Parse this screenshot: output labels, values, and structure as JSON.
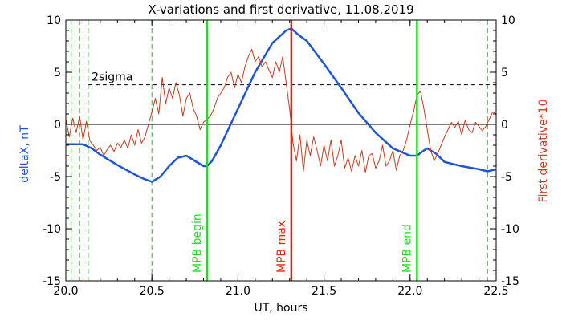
{
  "chart_data": {
    "type": "line",
    "title": "X-variations and first derivative, 11.08.2019",
    "xlabel": "UT, hours",
    "ylabel_left": "deltaX, nT",
    "ylabel_right": "First derivative*10",
    "xlim": [
      20.0,
      22.5
    ],
    "ylim": [
      -15,
      10
    ],
    "x_ticks": [
      "20.0",
      "20.5",
      "21.0",
      "21.5",
      "22.0",
      "22.5"
    ],
    "y_ticks": [
      "10",
      "5",
      "0",
      "-5",
      "-10",
      "-15"
    ],
    "colors": {
      "deltaX": "#1f55d6",
      "derivative": "#c83a1e",
      "mpb_marker": "#22dd22",
      "mpb_max": "#ee2200",
      "guides": "#22bb22",
      "threshold": "#000000"
    },
    "threshold": {
      "label": "2sigma",
      "value": 3.8
    },
    "zero_line": 0,
    "markers": [
      {
        "label": "MPB begin",
        "x": 20.82,
        "kind": "begin"
      },
      {
        "label": "MPB max",
        "x": 21.31,
        "kind": "max"
      },
      {
        "label": "MPB end",
        "x": 22.04,
        "kind": "end"
      }
    ],
    "dashed_guides_x": [
      20.03,
      20.08,
      20.13,
      20.5,
      22.45
    ],
    "series": [
      {
        "name": "deltaX",
        "axis": "left",
        "x": [
          20.0,
          20.1,
          20.15,
          20.2,
          20.3,
          20.4,
          20.45,
          20.5,
          20.55,
          20.6,
          20.65,
          20.7,
          20.75,
          20.8,
          20.82,
          20.85,
          20.9,
          21.0,
          21.1,
          21.2,
          21.28,
          21.31,
          21.35,
          21.4,
          21.5,
          21.6,
          21.7,
          21.8,
          21.9,
          22.0,
          22.04,
          22.08,
          22.1,
          22.15,
          22.2,
          22.3,
          22.4,
          22.45,
          22.5
        ],
        "y": [
          -1.9,
          -1.9,
          -2.3,
          -2.9,
          -3.9,
          -4.8,
          -5.2,
          -5.5,
          -5.0,
          -4.0,
          -3.2,
          -3.0,
          -3.5,
          -4.0,
          -4.0,
          -3.5,
          -2.0,
          1.5,
          5.0,
          7.8,
          9.0,
          9.2,
          8.6,
          8.0,
          5.8,
          3.5,
          1.1,
          -0.8,
          -2.3,
          -3.0,
          -3.0,
          -2.5,
          -2.3,
          -2.8,
          -3.6,
          -4.0,
          -4.3,
          -4.5,
          -4.3
        ]
      },
      {
        "name": "First derivative*10",
        "axis": "right",
        "x": [
          20.0,
          20.02,
          20.04,
          20.06,
          20.08,
          20.1,
          20.12,
          20.14,
          20.16,
          20.18,
          20.2,
          20.22,
          20.24,
          20.26,
          20.28,
          20.3,
          20.32,
          20.34,
          20.36,
          20.38,
          20.4,
          20.42,
          20.44,
          20.46,
          20.48,
          20.5,
          20.52,
          20.54,
          20.56,
          20.58,
          20.6,
          20.62,
          20.64,
          20.66,
          20.68,
          20.7,
          20.72,
          20.74,
          20.76,
          20.78,
          20.8,
          20.82,
          20.84,
          20.86,
          20.88,
          20.9,
          20.92,
          20.94,
          20.96,
          20.98,
          21.0,
          21.02,
          21.04,
          21.06,
          21.08,
          21.1,
          21.12,
          21.14,
          21.16,
          21.18,
          21.2,
          21.22,
          21.24,
          21.26,
          21.28,
          21.3,
          21.32,
          21.34,
          21.36,
          21.38,
          21.4,
          21.42,
          21.44,
          21.46,
          21.48,
          21.5,
          21.52,
          21.54,
          21.56,
          21.58,
          21.6,
          21.62,
          21.64,
          21.66,
          21.68,
          21.7,
          21.72,
          21.74,
          21.76,
          21.78,
          21.8,
          21.82,
          21.84,
          21.86,
          21.88,
          21.9,
          21.92,
          21.94,
          21.96,
          21.98,
          22.0,
          22.02,
          22.04,
          22.06,
          22.08,
          22.1,
          22.12,
          22.14,
          22.16,
          22.18,
          22.2,
          22.22,
          22.24,
          22.26,
          22.28,
          22.3,
          22.32,
          22.34,
          22.36,
          22.38,
          22.4,
          22.42,
          22.44,
          22.46,
          22.48,
          22.5
        ],
        "y": [
          0.5,
          -1.2,
          0.6,
          -0.8,
          0.8,
          -1.5,
          0.3,
          -1.6,
          -2.0,
          -2.5,
          -2.2,
          -3.0,
          -2.4,
          -2.0,
          -2.6,
          -1.8,
          -2.2,
          -1.5,
          -2.3,
          -1.0,
          -2.0,
          -0.5,
          -1.8,
          -1.2,
          0.0,
          1.2,
          2.5,
          1.0,
          4.5,
          2.0,
          3.5,
          2.5,
          4.0,
          2.8,
          0.8,
          2.5,
          3.0,
          1.5,
          0.8,
          -0.5,
          0.2,
          0.5,
          0.8,
          1.5,
          2.5,
          3.0,
          3.5,
          4.5,
          5.0,
          3.5,
          4.8,
          4.0,
          5.5,
          6.5,
          7.2,
          6.0,
          6.5,
          5.5,
          6.0,
          5.2,
          4.5,
          6.0,
          5.0,
          6.5,
          4.0,
          1.5,
          -1.8,
          -3.5,
          -1.0,
          -4.5,
          -1.5,
          -3.0,
          -1.2,
          -2.5,
          -4.0,
          -2.0,
          -3.5,
          -1.5,
          -4.0,
          -3.0,
          -1.5,
          -4.2,
          -3.2,
          -4.5,
          -3.0,
          -4.0,
          -2.5,
          -4.6,
          -3.0,
          -2.8,
          -4.2,
          -3.5,
          -2.0,
          -4.0,
          -3.5,
          -2.5,
          -4.4,
          -3.0,
          -2.5,
          -1.5,
          0.0,
          1.2,
          2.8,
          3.2,
          1.5,
          -0.5,
          -2.5,
          -3.5,
          -2.8,
          -2.0,
          -1.2,
          -0.5,
          0.2,
          -0.3,
          0.3,
          -1.0,
          0.4,
          -0.5,
          -0.8,
          0.2,
          -0.2,
          -0.6,
          -0.2,
          0.5,
          1.2,
          1.0
        ]
      }
    ]
  }
}
